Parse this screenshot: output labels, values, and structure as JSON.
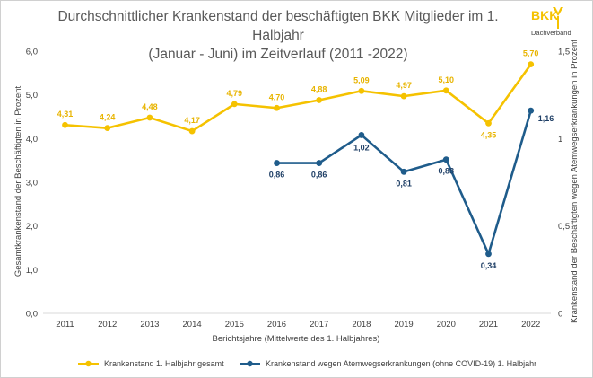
{
  "title_line1": "Durchschnittlicher Krankenstand der beschäftigten BKK Mitglieder im 1. Halbjahr",
  "title_line2": "(Januar - Juni) im Zeitverlauf (2011 -2022)",
  "logo": {
    "text": "BKK",
    "subtext": "Dachverband",
    "color": "#F5C200",
    "icon": "bkk-logo"
  },
  "colors": {
    "series1": "#F5C200",
    "series2": "#1F5C8B",
    "label1": "#E8B400",
    "label2": "#1F3F66"
  },
  "chart_data": {
    "type": "line",
    "x": [
      "2011",
      "2012",
      "2013",
      "2014",
      "2015",
      "2016",
      "2017",
      "2018",
      "2019",
      "2020",
      "2021",
      "2022"
    ],
    "xlabel": "Berichtsjahre (Mittelwerte des 1. Halbjahres)",
    "ylabel": "Gesamtkrankenstand der Beschäftigten in Prozent",
    "ylabel_right": "Krankenstand der Beschäftigten wegen Atemwegserkrankungen in Prozent",
    "ylim": [
      0,
      6
    ],
    "ylim_right": [
      0,
      1.5
    ],
    "yticks": [
      "0,0",
      "1,0",
      "2,0",
      "3,0",
      "4,0",
      "5,0",
      "6,0"
    ],
    "yticks_right": [
      "0",
      "0,5",
      "1",
      "1,5"
    ],
    "grid": false,
    "legend_position": "bottom",
    "series": [
      {
        "name": "Krankenstand 1. Halbjahr gesamt",
        "axis": "left",
        "values": [
          4.31,
          4.24,
          4.48,
          4.17,
          4.79,
          4.7,
          4.88,
          5.09,
          4.97,
          5.1,
          4.35,
          5.7
        ],
        "labels": [
          "4,31",
          "4,24",
          "4,48",
          "4,17",
          "4,79",
          "4,70",
          "4,88",
          "5,09",
          "4,97",
          "5,10",
          "4,35",
          "5,70"
        ]
      },
      {
        "name": "Krankenstand wegen Atemwegserkrankungen (ohne COVID-19) 1. Halbjahr",
        "axis": "right",
        "values": [
          null,
          null,
          null,
          null,
          null,
          0.86,
          0.86,
          1.02,
          0.81,
          0.88,
          0.34,
          1.16
        ],
        "labels": [
          "",
          "",
          "",
          "",
          "",
          "0,86",
          "0,86",
          "1,02",
          "0,81",
          "0,88",
          "0,34",
          "1,16"
        ]
      }
    ]
  }
}
